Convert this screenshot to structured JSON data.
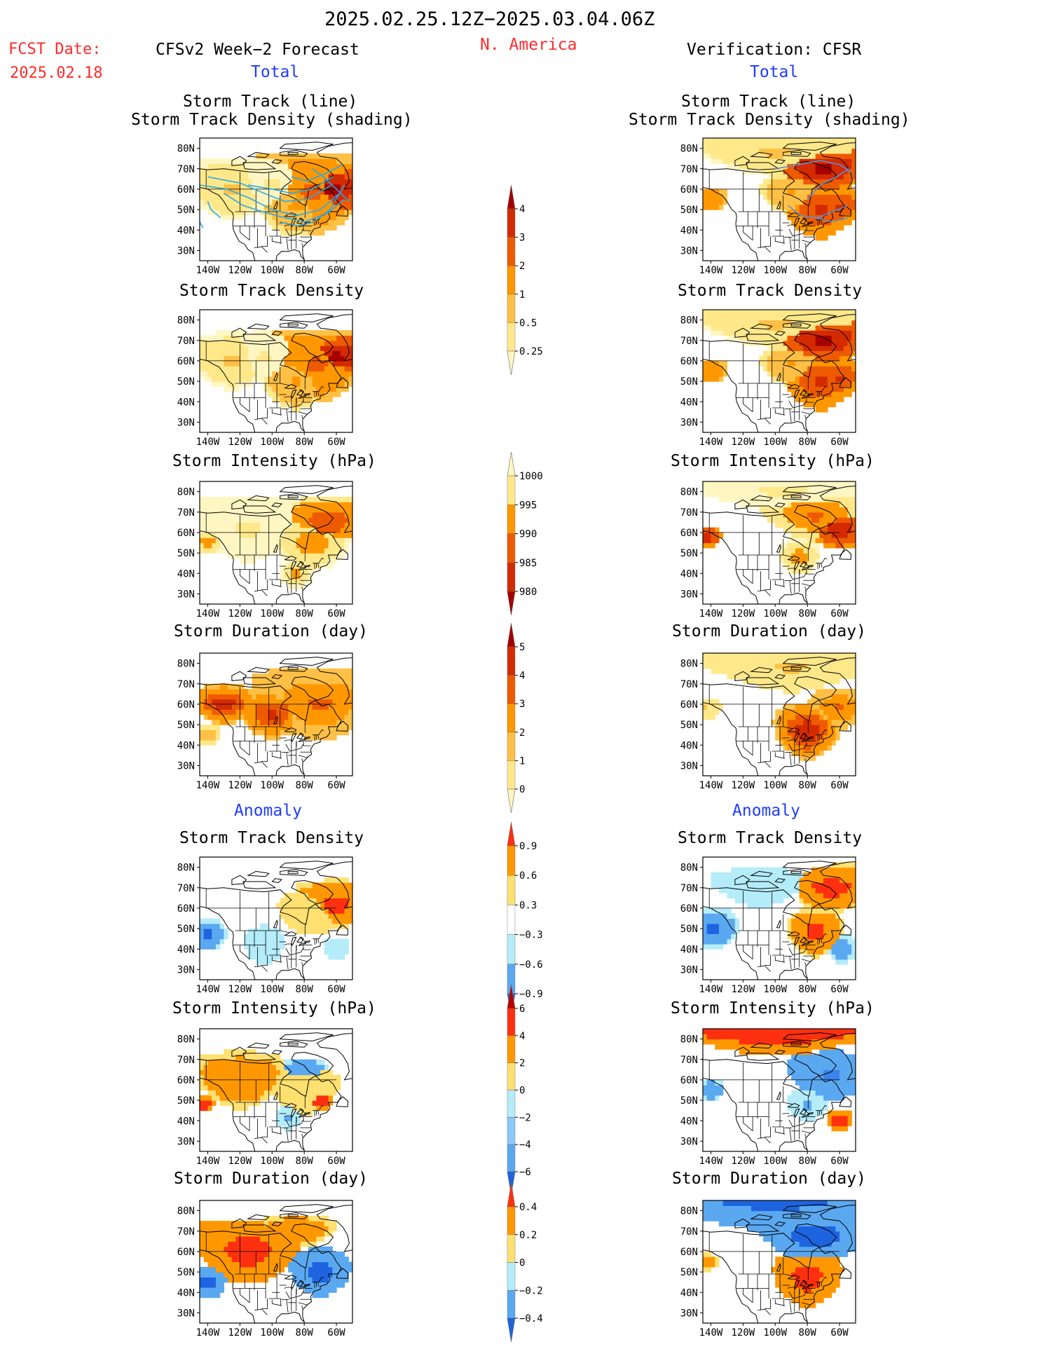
{
  "header": {
    "period": "2025.02.25.12Z−2025.03.04.06Z",
    "fcst_label": "FCST Date:",
    "fcst_date": "2025.02.18",
    "forecast_title": "CFSv2 Week−2 Forecast",
    "region": "N. America",
    "verification_title": "Verification: CFSR"
  },
  "sections": {
    "total_label": "Total",
    "anomaly_label": "Anomaly"
  },
  "panel_titles": {
    "track_line": "Storm Track (line)",
    "track_density_shading": "Storm Track Density (shading)",
    "track_density": "Storm Track Density",
    "intensity": "Storm Intensity (hPa)",
    "duration": "Storm Duration (day)"
  },
  "axes": {
    "lat_ticks": [
      "80N",
      "70N",
      "60N",
      "50N",
      "40N",
      "30N"
    ],
    "lon_ticks": [
      "140W",
      "120W",
      "100W",
      "80W",
      "60W"
    ]
  },
  "colorbars": [
    {
      "id": "density_total",
      "labels": [
        "4",
        "3",
        "2",
        "1",
        "0.5",
        "0.25"
      ],
      "colors": [
        "#a50000",
        "#d42a00",
        "#ee5a00",
        "#ff9800",
        "#ffc045",
        "#ffe88a",
        "#fff6c2"
      ]
    },
    {
      "id": "intensity_total",
      "labels": [
        "1000",
        "995",
        "990",
        "985",
        "980"
      ],
      "colors": [
        "#fff6c2",
        "#ffe88a",
        "#ff9800",
        "#ee5a00",
        "#d42a00",
        "#a50000"
      ]
    },
    {
      "id": "duration_total",
      "labels": [
        "5",
        "4",
        "3",
        "2",
        "1",
        "0"
      ],
      "colors": [
        "#a50000",
        "#d42a00",
        "#ee5a00",
        "#ff9800",
        "#ffc045",
        "#ffe88a",
        "#fff6c2"
      ]
    },
    {
      "id": "density_anom",
      "labels": [
        "0.9",
        "0.6",
        "0.3",
        "−0.3",
        "−0.6",
        "−0.9"
      ],
      "colors": [
        "#ff3010",
        "#ff9800",
        "#ffe070",
        "#ffffff",
        "#b4ecfa",
        "#5aa8f0",
        "#1e64e0"
      ]
    },
    {
      "id": "intensity_anom",
      "labels": [
        "6",
        "4",
        "2",
        "0",
        "−2",
        "−4",
        "−6"
      ],
      "colors": [
        "#b80000",
        "#ff3010",
        "#ff9800",
        "#ffe070",
        "#b4ecfa",
        "#8cc8f8",
        "#5aa8f0",
        "#1e64e0"
      ]
    },
    {
      "id": "duration_anom",
      "labels": [
        "0.4",
        "0.2",
        "0",
        "−0.2",
        "−0.4"
      ],
      "colors": [
        "#ff3010",
        "#ff9800",
        "#ffe070",
        "#b4ecfa",
        "#5aa8f0",
        "#1e64e0"
      ]
    }
  ],
  "chart_data": {
    "type": "heatmap",
    "map_extent": {
      "lon": [
        -145,
        -50
      ],
      "lat": [
        25,
        85
      ]
    },
    "fields": [
      {
        "id": "track_total_fcst",
        "panel": "Storm Track Density (shading)",
        "side": "forecast",
        "blobs": [
          {
            "lon": -62,
            "lat": 60,
            "r": 14,
            "v": 4
          },
          {
            "lon": -75,
            "lat": 58,
            "r": 20,
            "v": 2
          },
          {
            "lon": -85,
            "lat": 52,
            "r": 15,
            "v": 1
          },
          {
            "lon": -125,
            "lat": 60,
            "r": 15,
            "v": 0.5
          },
          {
            "lon": -100,
            "lat": 62,
            "r": 14,
            "v": 0.25
          }
        ]
      },
      {
        "id": "track_total_cfsr",
        "panel": "Storm Track Density (shading)",
        "side": "verification",
        "blobs": [
          {
            "lon": -70,
            "lat": 70,
            "r": 12,
            "v": 4
          },
          {
            "lon": -72,
            "lat": 50,
            "r": 14,
            "v": 3
          },
          {
            "lon": -60,
            "lat": 52,
            "r": 10,
            "v": 3
          },
          {
            "lon": -140,
            "lat": 55,
            "r": 6,
            "v": 2
          },
          {
            "lon": -90,
            "lat": 58,
            "r": 10,
            "v": 1
          },
          {
            "lon": -100,
            "lat": 78,
            "r": 12,
            "v": 0.5
          }
        ]
      },
      {
        "id": "density_total_fcst",
        "panel": "Storm Track Density",
        "side": "forecast",
        "blobs": [
          {
            "lon": -60,
            "lat": 62,
            "r": 12,
            "v": 4
          },
          {
            "lon": -72,
            "lat": 58,
            "r": 18,
            "v": 2
          },
          {
            "lon": -85,
            "lat": 50,
            "r": 14,
            "v": 1
          },
          {
            "lon": -125,
            "lat": 60,
            "r": 14,
            "v": 0.5
          },
          {
            "lon": -105,
            "lat": 62,
            "r": 12,
            "v": 0.25
          }
        ]
      },
      {
        "id": "density_total_cfsr",
        "panel": "Storm Track Density",
        "side": "verification",
        "blobs": [
          {
            "lon": -70,
            "lat": 70,
            "r": 12,
            "v": 4
          },
          {
            "lon": -72,
            "lat": 50,
            "r": 14,
            "v": 3
          },
          {
            "lon": -60,
            "lat": 52,
            "r": 10,
            "v": 3
          },
          {
            "lon": -140,
            "lat": 55,
            "r": 6,
            "v": 2
          },
          {
            "lon": -90,
            "lat": 58,
            "r": 10,
            "v": 1
          },
          {
            "lon": -100,
            "lat": 78,
            "r": 12,
            "v": 0.5
          }
        ]
      },
      {
        "id": "intensity_total_fcst",
        "panel": "Storm Intensity (hPa)",
        "side": "forecast",
        "blobs": [
          {
            "lon": -65,
            "lat": 65,
            "r": 12,
            "v": 985
          },
          {
            "lon": -75,
            "lat": 55,
            "r": 14,
            "v": 990
          },
          {
            "lon": -115,
            "lat": 62,
            "r": 16,
            "v": 997
          },
          {
            "lon": -140,
            "lat": 55,
            "r": 6,
            "v": 990
          },
          {
            "lon": -85,
            "lat": 40,
            "r": 8,
            "v": 992
          }
        ]
      },
      {
        "id": "intensity_total_cfsr",
        "panel": "Storm Intensity (hPa)",
        "side": "verification",
        "blobs": [
          {
            "lon": -60,
            "lat": 62,
            "r": 10,
            "v": 980
          },
          {
            "lon": -75,
            "lat": 68,
            "r": 12,
            "v": 988
          },
          {
            "lon": -85,
            "lat": 48,
            "r": 9,
            "v": 990
          },
          {
            "lon": -143,
            "lat": 58,
            "r": 5,
            "v": 980
          },
          {
            "lon": -95,
            "lat": 80,
            "r": 10,
            "v": 997
          }
        ]
      },
      {
        "id": "duration_total_fcst",
        "panel": "Storm Duration (day)",
        "side": "forecast",
        "blobs": [
          {
            "lon": -130,
            "lat": 60,
            "r": 10,
            "v": 4.5
          },
          {
            "lon": -100,
            "lat": 55,
            "r": 12,
            "v": 4
          },
          {
            "lon": -70,
            "lat": 60,
            "r": 18,
            "v": 3
          },
          {
            "lon": -140,
            "lat": 45,
            "r": 6,
            "v": 1.5
          }
        ]
      },
      {
        "id": "duration_total_cfsr",
        "panel": "Storm Duration (day)",
        "side": "verification",
        "blobs": [
          {
            "lon": -80,
            "lat": 47,
            "r": 14,
            "v": 4.5
          },
          {
            "lon": -60,
            "lat": 58,
            "r": 10,
            "v": 3
          },
          {
            "lon": -90,
            "lat": 78,
            "r": 12,
            "v": 1
          },
          {
            "lon": -143,
            "lat": 58,
            "r": 5,
            "v": 1
          }
        ]
      },
      {
        "id": "density_anom_fcst",
        "panel": "Storm Track Density",
        "side": "forecast",
        "blobs": [
          {
            "lon": -60,
            "lat": 62,
            "r": 12,
            "v": 0.95
          },
          {
            "lon": -75,
            "lat": 58,
            "r": 12,
            "v": 0.5
          },
          {
            "lon": -140,
            "lat": 47,
            "r": 8,
            "v": -0.9
          },
          {
            "lon": -105,
            "lat": 42,
            "r": 14,
            "v": -0.4
          },
          {
            "lon": -60,
            "lat": 40,
            "r": 6,
            "v": -0.6
          }
        ]
      },
      {
        "id": "density_anom_cfsr",
        "panel": "Storm Track Density",
        "side": "verification",
        "blobs": [
          {
            "lon": -65,
            "lat": 70,
            "r": 12,
            "v": 0.95
          },
          {
            "lon": -75,
            "lat": 48,
            "r": 12,
            "v": 0.95
          },
          {
            "lon": -138,
            "lat": 50,
            "r": 10,
            "v": -0.9
          },
          {
            "lon": -110,
            "lat": 70,
            "r": 14,
            "v": -0.4
          },
          {
            "lon": -58,
            "lat": 40,
            "r": 7,
            "v": -0.8
          }
        ]
      },
      {
        "id": "intensity_anom_fcst",
        "panel": "Storm Intensity (hPa)",
        "side": "forecast",
        "blobs": [
          {
            "lon": -120,
            "lat": 60,
            "r": 14,
            "v": 3
          },
          {
            "lon": -80,
            "lat": 55,
            "r": 12,
            "v": 1
          },
          {
            "lon": -142,
            "lat": 48,
            "r": 4,
            "v": 5
          },
          {
            "lon": -70,
            "lat": 50,
            "r": 5,
            "v": 5
          },
          {
            "lon": -80,
            "lat": 65,
            "r": 6,
            "v": -3
          },
          {
            "lon": -90,
            "lat": 42,
            "r": 6,
            "v": -2
          }
        ]
      },
      {
        "id": "intensity_anom_cfsr",
        "panel": "Storm Intensity (hPa)",
        "side": "verification",
        "blobs": [
          {
            "lon": -65,
            "lat": 62,
            "r": 12,
            "v": -4
          },
          {
            "lon": -80,
            "lat": 48,
            "r": 8,
            "v": -2
          },
          {
            "lon": -100,
            "lat": 84,
            "r": 12,
            "v": 5
          },
          {
            "lon": -60,
            "lat": 40,
            "r": 6,
            "v": 5
          },
          {
            "lon": -140,
            "lat": 55,
            "r": 5,
            "v": -3
          }
        ]
      },
      {
        "id": "duration_anom_fcst",
        "panel": "Storm Duration (day)",
        "side": "forecast",
        "blobs": [
          {
            "lon": -115,
            "lat": 60,
            "r": 16,
            "v": 0.45
          },
          {
            "lon": -70,
            "lat": 50,
            "r": 12,
            "v": -0.45
          },
          {
            "lon": -140,
            "lat": 45,
            "r": 8,
            "v": -0.45
          },
          {
            "lon": -85,
            "lat": 70,
            "r": 8,
            "v": 0.3
          }
        ]
      },
      {
        "id": "duration_anom_cfsr",
        "panel": "Storm Duration (day)",
        "side": "verification",
        "blobs": [
          {
            "lon": -75,
            "lat": 67,
            "r": 13,
            "v": -0.45
          },
          {
            "lon": -80,
            "lat": 47,
            "r": 14,
            "v": 0.45
          },
          {
            "lon": -100,
            "lat": 84,
            "r": 14,
            "v": -0.4
          },
          {
            "lon": -142,
            "lat": 55,
            "r": 4,
            "v": 0.3
          }
        ]
      }
    ]
  }
}
